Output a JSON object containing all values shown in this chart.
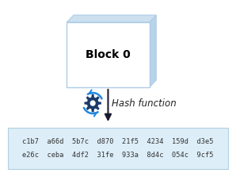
{
  "block_label": "Block 0",
  "hash_function_label": "Hash function",
  "hash_line1": "c1b7  a66d  5b7c  d870  21f5  4234  159d  d3e5",
  "hash_line2": "e26c  ceba  4df2  31fe  933a  8d4c  054c  9cf5",
  "block_fill": "#ffffff",
  "block_edge_color": "#aecce8",
  "block_right_color": "#b8d4e8",
  "block_top_color": "#cce0f0",
  "hash_box_fill": "#ddeef8",
  "hash_box_edge": "#b0cfe0",
  "arrow_color": "#1a1a2e",
  "gear_color": "#1a3a6b",
  "gear_rotate_color": "#2288dd",
  "text_color": "#222222",
  "hash_text_color": "#333333",
  "block_label_color": "#000000",
  "background_color": "#ffffff"
}
